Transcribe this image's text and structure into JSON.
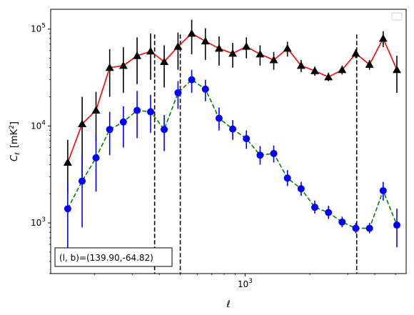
{
  "chart_data": {
    "type": "line",
    "title": "",
    "xlabel": "ℓ",
    "ylabel_main": "C",
    "ylabel_sub": "ℓ",
    "ylabel_unit": "[mK",
    "ylabel_unit_sup": "2",
    "ylabel_unit_end": "]",
    "x_scale": "log",
    "y_scale": "log",
    "xlim": [
      125,
      5600
    ],
    "ylim": [
      300,
      160000
    ],
    "grid": false,
    "legend": "top-right (empty)",
    "x_ticks": [
      {
        "value": 1000,
        "base": "10",
        "exp": "3"
      }
    ],
    "y_ticks": [
      {
        "value": 1000,
        "base": "10",
        "exp": "3"
      },
      {
        "value": 10000,
        "base": "10",
        "exp": "4"
      },
      {
        "value": 100000,
        "base": "10",
        "exp": "5"
      }
    ],
    "vlines": [
      380,
      500,
      3300
    ],
    "annotation": "(l, b)=(139.90,-64.82)",
    "series": [
      {
        "color": "#ff0000",
        "marker": "triangle",
        "marker_color": "#000000",
        "linestyle": "solid",
        "points": [
          {
            "x": 150,
            "y": 4200,
            "lo": 2000,
            "hi": 7200
          },
          {
            "x": 175,
            "y": 10500,
            "lo": 3000,
            "hi": 20000
          },
          {
            "x": 203,
            "y": 14500,
            "lo": 7000,
            "hi": 22500
          },
          {
            "x": 235,
            "y": 40000,
            "lo": 20000,
            "hi": 62000
          },
          {
            "x": 272,
            "y": 42000,
            "lo": 22000,
            "hi": 65000
          },
          {
            "x": 315,
            "y": 53000,
            "lo": 27000,
            "hi": 82000
          },
          {
            "x": 364,
            "y": 59000,
            "lo": 30000,
            "hi": 90000
          },
          {
            "x": 421,
            "y": 46000,
            "lo": 25000,
            "hi": 68000
          },
          {
            "x": 488,
            "y": 66000,
            "lo": 38000,
            "hi": 92000
          },
          {
            "x": 565,
            "y": 90000,
            "lo": 55000,
            "hi": 125000
          },
          {
            "x": 654,
            "y": 75000,
            "lo": 48000,
            "hi": 102000
          },
          {
            "x": 757,
            "y": 63000,
            "lo": 42000,
            "hi": 84000
          },
          {
            "x": 876,
            "y": 56000,
            "lo": 40000,
            "hi": 72000
          },
          {
            "x": 1014,
            "y": 66000,
            "lo": 50000,
            "hi": 82000
          },
          {
            "x": 1174,
            "y": 55000,
            "lo": 42000,
            "hi": 68000
          },
          {
            "x": 1359,
            "y": 48000,
            "lo": 38000,
            "hi": 58000
          },
          {
            "x": 1573,
            "y": 63000,
            "lo": 52000,
            "hi": 74000
          },
          {
            "x": 1821,
            "y": 42000,
            "lo": 36000,
            "hi": 48000
          },
          {
            "x": 2108,
            "y": 37000,
            "lo": 33000,
            "hi": 41000
          },
          {
            "x": 2440,
            "y": 32000,
            "lo": 29000,
            "hi": 35500
          },
          {
            "x": 2824,
            "y": 38000,
            "lo": 34000,
            "hi": 42000
          },
          {
            "x": 3269,
            "y": 56000,
            "lo": 50000,
            "hi": 62000
          },
          {
            "x": 3784,
            "y": 43000,
            "lo": 38000,
            "hi": 48000
          },
          {
            "x": 4380,
            "y": 80000,
            "lo": 65000,
            "hi": 95000
          },
          {
            "x": 5070,
            "y": 38000,
            "lo": 22000,
            "hi": 53000
          }
        ]
      },
      {
        "color": "#008000",
        "marker": "circle",
        "marker_color": "#0000ff",
        "linestyle": "dashed",
        "points": [
          {
            "x": 150,
            "y": 1400,
            "lo": 450,
            "hi": 2600
          },
          {
            "x": 175,
            "y": 2700,
            "lo": 900,
            "hi": 5000
          },
          {
            "x": 203,
            "y": 4700,
            "lo": 2100,
            "hi": 8000
          },
          {
            "x": 235,
            "y": 9200,
            "lo": 5000,
            "hi": 14000
          },
          {
            "x": 272,
            "y": 11000,
            "lo": 6000,
            "hi": 16000
          },
          {
            "x": 315,
            "y": 14500,
            "lo": 7500,
            "hi": 23000
          },
          {
            "x": 364,
            "y": 14000,
            "lo": 8500,
            "hi": 21000
          },
          {
            "x": 421,
            "y": 9200,
            "lo": 5500,
            "hi": 13000
          },
          {
            "x": 488,
            "y": 22000,
            "lo": 15000,
            "hi": 29000
          },
          {
            "x": 565,
            "y": 30000,
            "lo": 22000,
            "hi": 38000
          },
          {
            "x": 654,
            "y": 24000,
            "lo": 18000,
            "hi": 30000
          },
          {
            "x": 757,
            "y": 12000,
            "lo": 9000,
            "hi": 15500
          },
          {
            "x": 876,
            "y": 9300,
            "lo": 7200,
            "hi": 11500
          },
          {
            "x": 1014,
            "y": 7400,
            "lo": 5800,
            "hi": 9000
          },
          {
            "x": 1174,
            "y": 5000,
            "lo": 4000,
            "hi": 6200
          },
          {
            "x": 1359,
            "y": 5200,
            "lo": 4200,
            "hi": 6300
          },
          {
            "x": 1573,
            "y": 2900,
            "lo": 2400,
            "hi": 3500
          },
          {
            "x": 1821,
            "y": 2250,
            "lo": 1900,
            "hi": 2650
          },
          {
            "x": 2108,
            "y": 1450,
            "lo": 1250,
            "hi": 1700
          },
          {
            "x": 2440,
            "y": 1280,
            "lo": 1100,
            "hi": 1500
          },
          {
            "x": 2824,
            "y": 1020,
            "lo": 900,
            "hi": 1160
          },
          {
            "x": 3269,
            "y": 880,
            "lo": 780,
            "hi": 1000
          },
          {
            "x": 3784,
            "y": 880,
            "lo": 780,
            "hi": 1000
          },
          {
            "x": 4380,
            "y": 2150,
            "lo": 1700,
            "hi": 2650
          },
          {
            "x": 5070,
            "y": 950,
            "lo": 560,
            "hi": 1400
          }
        ]
      }
    ]
  }
}
